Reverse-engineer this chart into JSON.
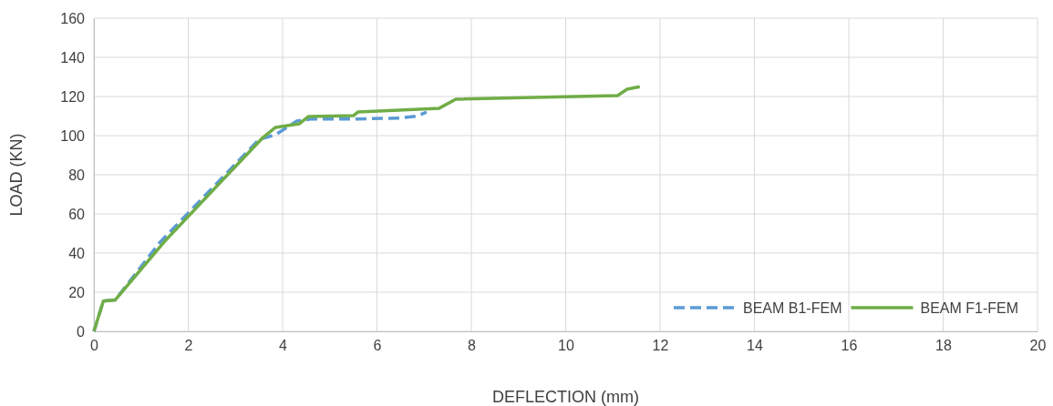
{
  "chart_data": {
    "type": "line",
    "xlabel": "DEFLECTION (mm)",
    "ylabel": "LOAD (KN)",
    "xlim": [
      0,
      20
    ],
    "ylim": [
      0,
      160
    ],
    "xticks": [
      0,
      2,
      4,
      6,
      8,
      10,
      12,
      14,
      16,
      18,
      20
    ],
    "yticks": [
      0,
      20,
      40,
      60,
      80,
      100,
      120,
      140,
      160
    ],
    "grid": true,
    "legend": "bottom right",
    "marker": "none",
    "series": [
      {
        "name": "BEAM B1-FEM",
        "color": "#5b9bd5",
        "line_style": "dashed",
        "x": [
          0,
          0.2,
          0.45,
          1.4,
          3.5,
          3.85,
          4.3,
          4.6,
          5.5,
          6.5,
          6.85,
          7.05
        ],
        "values": [
          0,
          15.5,
          16,
          45.5,
          98,
          100.5,
          107.5,
          108.5,
          108.5,
          109,
          110,
          112
        ]
      },
      {
        "name": "BEAM F1-FEM",
        "color": "#70ad47",
        "line_style": "solid",
        "x": [
          0,
          0.2,
          0.45,
          1.5,
          3.56,
          3.85,
          4.35,
          4.55,
          5.5,
          5.6,
          7.32,
          7.67,
          11.1,
          11.3,
          11.57
        ],
        "values": [
          0,
          15.5,
          16,
          46,
          98.5,
          104.2,
          106,
          109.8,
          110.2,
          112.1,
          114,
          118.6,
          120.5,
          123.7,
          125
        ]
      }
    ]
  }
}
